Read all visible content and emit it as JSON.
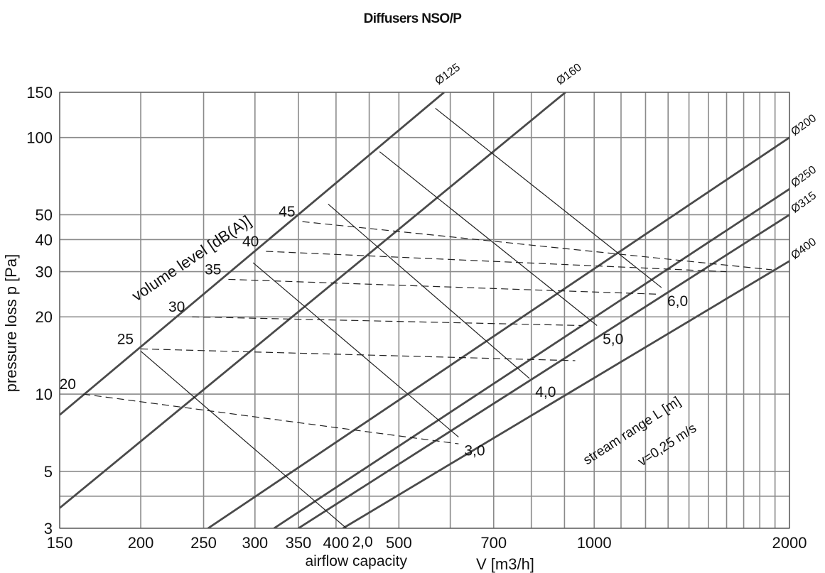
{
  "chart_data": {
    "type": "line",
    "title": "Diffusers NSO/P",
    "xlabel_main": "airflow capacity",
    "xlabel_unit": "V [m3/h]",
    "ylabel": "pressure loss  p [Pa]",
    "x_scale": "log",
    "y_scale": "log",
    "xlim": [
      150,
      2000
    ],
    "ylim": [
      3,
      150
    ],
    "x_ticks": [
      150,
      200,
      250,
      300,
      350,
      400,
      500,
      700,
      1000,
      2000
    ],
    "x_tick_labels": [
      "150",
      "200",
      "250",
      "300",
      "350",
      "400",
      "500",
      "700",
      "1000",
      "2000"
    ],
    "x_grid": [
      150,
      200,
      250,
      300,
      350,
      400,
      450,
      500,
      600,
      700,
      800,
      900,
      1000,
      1100,
      1200,
      1300,
      1400,
      1500,
      1600,
      1700,
      1800,
      1900,
      2000
    ],
    "y_ticks": [
      3,
      5,
      10,
      20,
      30,
      40,
      50,
      100,
      150
    ],
    "y_tick_labels": [
      "3",
      "5",
      "10",
      "20",
      "30",
      "40",
      "50",
      "100",
      "150"
    ],
    "y_grid": [
      3,
      4,
      5,
      10,
      20,
      30,
      40,
      50,
      100,
      150
    ],
    "grid": true,
    "diameter_lines": [
      {
        "name": "Ø125",
        "points": [
          [
            150,
            8.3
          ],
          [
            587,
            150
          ]
        ]
      },
      {
        "name": "Ø160",
        "points": [
          [
            150,
            3.6
          ],
          [
            903,
            150
          ]
        ]
      },
      {
        "name": "Ø200",
        "points": [
          [
            254,
            3
          ],
          [
            2000,
            100
          ]
        ]
      },
      {
        "name": "Ø250",
        "points": [
          [
            321,
            3
          ],
          [
            2000,
            63
          ]
        ]
      },
      {
        "name": "Ø315",
        "points": [
          [
            350,
            3
          ],
          [
            2000,
            50
          ]
        ]
      },
      {
        "name": "Ø400",
        "points": [
          [
            410,
            3
          ],
          [
            2000,
            33
          ]
        ]
      }
    ],
    "stream_range": {
      "label": "stream range L [m]",
      "note": "v=0,25 m/s",
      "series": [
        {
          "name": "2,0",
          "points": [
            [
              200,
              14.7
            ],
            [
              415,
              3
            ]
          ]
        },
        {
          "name": "3,0",
          "points": [
            [
              298,
              32.5
            ],
            [
              618,
              6.8
            ]
          ]
        },
        {
          "name": "4,0",
          "points": [
            [
              389,
              55
            ],
            [
              795,
              11.5
            ]
          ]
        },
        {
          "name": "5,0",
          "points": [
            [
              467,
              88
            ],
            [
              1010,
              18.5
            ]
          ]
        },
        {
          "name": "6,0",
          "points": [
            [
              569,
              130
            ],
            [
              1270,
              26
            ]
          ]
        }
      ]
    },
    "volume_level": {
      "label": "volume level  [dB(A)]",
      "series": [
        {
          "name": "20",
          "points": [
            [
              163,
              10
            ],
            [
              618,
              6.4
            ]
          ]
        },
        {
          "name": "25",
          "points": [
            [
              200,
              15
            ],
            [
              935,
              13.5
            ]
          ]
        },
        {
          "name": "30",
          "points": [
            [
              240,
              20
            ],
            [
              960,
              18.5
            ]
          ]
        },
        {
          "name": "35",
          "points": [
            [
              273,
              28
            ],
            [
              1260,
              24.5
            ]
          ]
        },
        {
          "name": "40",
          "points": [
            [
              312,
              36
            ],
            [
              1600,
              30
            ]
          ]
        },
        {
          "name": "45",
          "points": [
            [
              355,
              47
            ],
            [
              1880,
              30.5
            ]
          ]
        }
      ]
    }
  }
}
